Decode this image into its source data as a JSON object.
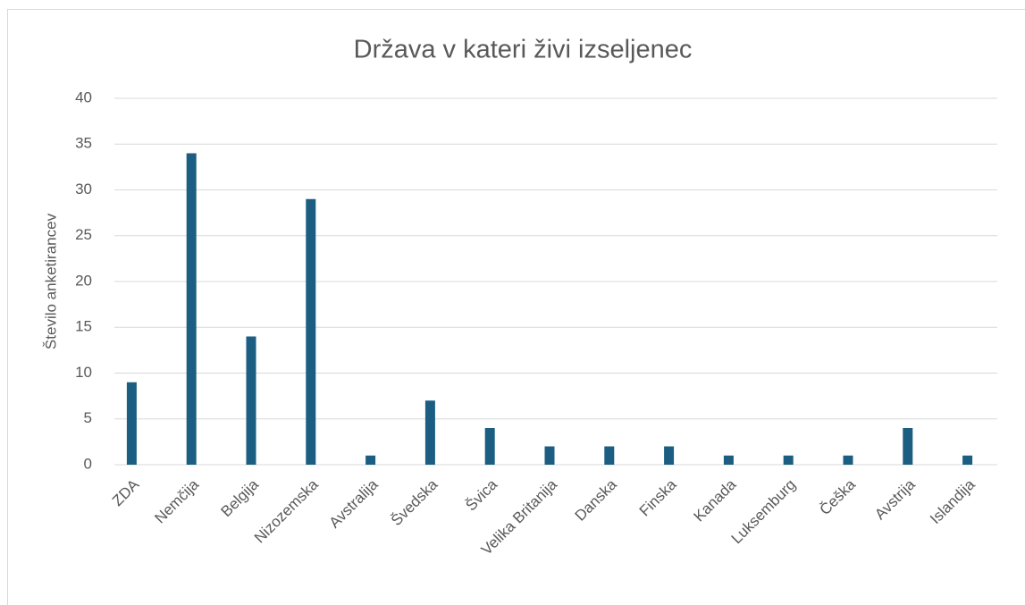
{
  "chart_data": {
    "type": "bar",
    "title": "Država v kateri živi izseljenec",
    "y_label": "Število anketirancev",
    "categories": [
      "ZDA",
      "Nemčija",
      "Belgija",
      "Nizozemska",
      "Avstralija",
      "Švedska",
      "Švica",
      "Velika Britanija",
      "Danska",
      "Finska",
      "Kanada",
      "Luksemburg",
      "Češka",
      "Avstrija",
      "Islandija"
    ],
    "values": [
      9,
      34,
      14,
      29,
      1,
      7,
      4,
      2,
      2,
      2,
      1,
      1,
      1,
      4,
      1
    ],
    "color": "#1b5e82",
    "ylim": [
      0,
      40
    ],
    "yticks": [
      0,
      5,
      10,
      15,
      20,
      25,
      30,
      35,
      40
    ],
    "grid": true
  }
}
